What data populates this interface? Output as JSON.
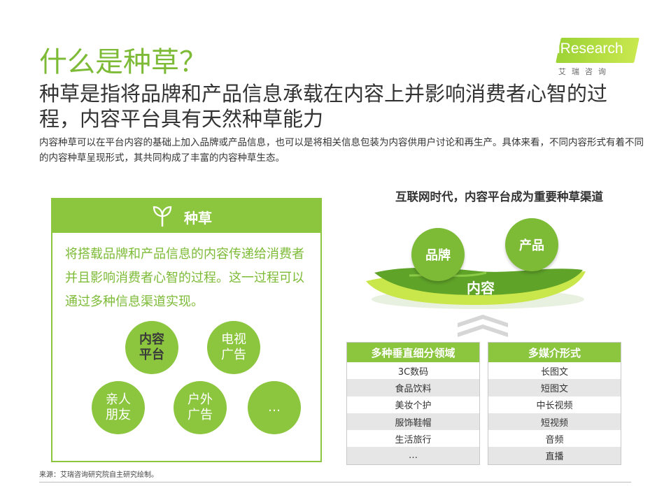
{
  "header": {
    "title": "什么是种草？",
    "subtitle": "种草是指将品牌和产品信息承载在内容上并影响消费者心智的过程，内容平台具有天然种草能力",
    "intro": "内容种草可以在平台内容的基础上加入品牌或产品信息，也可以是将相关信息包装为内容供用户讨论和再生产。具体来看，不同内容形式有着不同的内容种草呈现形式，其共同构成了丰富的内容种草生态。"
  },
  "logo": {
    "text": "iResearch",
    "sub": "艾瑞咨询"
  },
  "card": {
    "title": "种草",
    "icon": "sprout-icon",
    "body": "将搭载品牌和产品信息的内容传递给消费者并且影响消费者心智的过程。这一过程可以通过多种信息渠道实现。",
    "circles": [
      "内容平台",
      "电视广告",
      "亲人朋友",
      "户外广告",
      "…"
    ]
  },
  "diagram": {
    "title": "互联网时代，内容平台成为重要种草渠道",
    "balls": [
      "品牌",
      "产品"
    ],
    "boat_label": "内容"
  },
  "tables": [
    {
      "header": "多种垂直细分领域",
      "rows": [
        "3C数码",
        "食品饮料",
        "美妆个护",
        "服饰鞋帽",
        "生活旅行",
        "…"
      ]
    },
    {
      "header": "多媒介形式",
      "rows": [
        "长图文",
        "短图文",
        "中长视频",
        "短视频",
        "音频",
        "直播"
      ]
    }
  ],
  "footer": {
    "source": "来源：艾瑞咨询研究院自主研究绘制。"
  },
  "colors": {
    "accent": "#8cc63f",
    "accent_text": "#7dbb37"
  }
}
